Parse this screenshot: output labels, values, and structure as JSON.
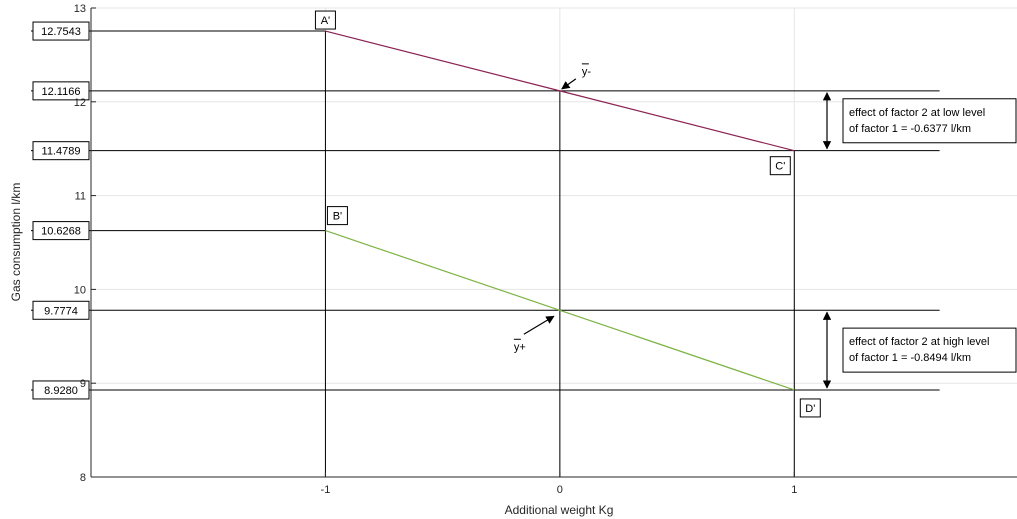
{
  "chart_data": {
    "type": "line",
    "xlabel": "Additional weight  Kg",
    "ylabel": "Gas consumption l/km",
    "xlim": [
      -2,
      1.95
    ],
    "ylim": [
      8,
      13
    ],
    "xticks": [
      -1,
      0,
      1
    ],
    "xtick_labels": [
      "-1",
      "0",
      "1"
    ],
    "yticks": [
      8,
      9,
      10,
      11,
      12,
      13
    ],
    "ytick_labels": [
      "8",
      "9",
      "10",
      "11",
      "12",
      "13"
    ],
    "grid": true,
    "series": [
      {
        "color": "#8b2252",
        "x": [
          -1,
          0,
          1
        ],
        "y": [
          12.7543,
          12.1166,
          11.4789
        ]
      },
      {
        "color": "#7cb342",
        "x": [
          -1,
          0,
          1
        ],
        "y": [
          10.6268,
          9.7774,
          8.928
        ]
      }
    ],
    "reference_lines": [
      {
        "label": "12.7543",
        "y": 12.7543,
        "x_from": -2,
        "x_to": -1
      },
      {
        "label": "12.1166",
        "y": 12.1166,
        "x_from": -2,
        "x_to": 1.62
      },
      {
        "label": "11.4789",
        "y": 11.4789,
        "x_from": -2,
        "x_to": 1.62
      },
      {
        "label": "10.6268",
        "y": 10.6268,
        "x_from": -2,
        "x_to": -1
      },
      {
        "label": "9.7774",
        "y": 9.7774,
        "x_from": -2,
        "x_to": 1.62
      },
      {
        "label": "8.9280",
        "y": 8.928,
        "x_from": -2,
        "x_to": 1.62
      }
    ],
    "vertical_lines": [
      {
        "x": -1,
        "y_to": 12.7543
      },
      {
        "x": 0,
        "y_to": 12.1166
      },
      {
        "x": 1,
        "y_to": 11.4789
      }
    ],
    "point_labels": [
      {
        "text": "A'",
        "x": -1,
        "y": 12.7543
      },
      {
        "text": "B'",
        "x": -1,
        "y": 10.6268
      },
      {
        "text": "C'",
        "x": 1,
        "y": 11.4789
      },
      {
        "text": "D'",
        "x": 1,
        "y": 8.928
      }
    ],
    "mean_labels": [
      {
        "text": "y-",
        "x": 0,
        "y": 12.1166
      },
      {
        "text": "y+",
        "x": 0,
        "y": 9.7774
      }
    ],
    "effects": [
      {
        "lines": [
          "effect of factor 2 at low level",
          "of factor 1 = -0.6377 l/km"
        ],
        "y_from": 12.1166,
        "y_to": 11.4789
      },
      {
        "lines": [
          "effect of factor 2 at high level",
          "of factor 1 = -0.8494 l/km"
        ],
        "y_from": 9.7774,
        "y_to": 8.928
      }
    ]
  }
}
